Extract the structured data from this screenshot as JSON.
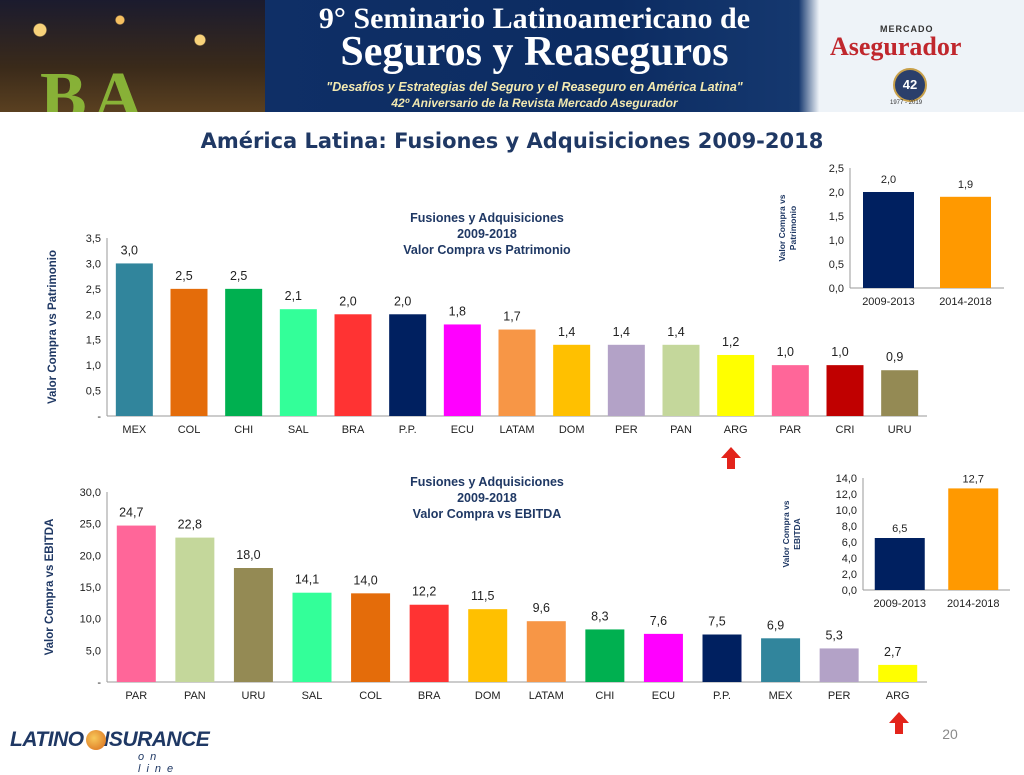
{
  "banner": {
    "title_line1": "9° Seminario Latinoamericano de",
    "title_line2": "Seguros y Reaseguros",
    "subtitle1": "\"Desafíos y Estrategias del Seguro y el Reaseguro en América Latina\"",
    "subtitle2": "42º Aniversario de la Revista Mercado Asegurador",
    "photo_text": "BA",
    "logo_small": "MERCADO",
    "logo_main": "Asegurador",
    "badge": "42",
    "badge_years": "1977 - 2019"
  },
  "slide": {
    "title": "América Latina: Fusiones y Adquisiciones 2009-2018",
    "page_number": "20",
    "footer_logo": {
      "main": "LATINO INSURANCE",
      "sub": "on line"
    }
  },
  "colors": {
    "title": "#1f3864",
    "arrow": "#e3241b"
  },
  "chart_data": [
    {
      "id": "patrimonio",
      "type": "bar",
      "title_lines": [
        "Fusiones y Adquisiciones",
        "2009-2018",
        "Valor Compra vs Patrimonio"
      ],
      "ylabel": "Valor Compra vs Patrimonio",
      "categories": [
        "MEX",
        "COL",
        "CHI",
        "SAL",
        "BRA",
        "P.P.",
        "ECU",
        "LATAM",
        "DOM",
        "PER",
        "PAN",
        "ARG",
        "PAR",
        "CRI",
        "URU"
      ],
      "values": [
        3.0,
        2.5,
        2.5,
        2.1,
        2.0,
        2.0,
        1.8,
        1.7,
        1.4,
        1.4,
        1.4,
        1.2,
        1.0,
        1.0,
        0.9
      ],
      "labels": [
        "3,0",
        "2,5",
        "2,5",
        "2,1",
        "2,0",
        "2,0",
        "1,8",
        "1,7",
        "1,4",
        "1,4",
        "1,4",
        "1,2",
        "1,0",
        "1,0",
        "0,9"
      ],
      "colors": [
        "#31859c",
        "#e46c0a",
        "#00b050",
        "#33ff99",
        "#ff3333",
        "#002060",
        "#ff00ff",
        "#f79646",
        "#ffc000",
        "#b3a2c7",
        "#c4d79b",
        "#ffff00",
        "#ff6699",
        "#c00000",
        "#948a54"
      ],
      "ylim": [
        0,
        3.5
      ],
      "yticks": [
        "-",
        "0,5",
        "1,0",
        "1,5",
        "2,0",
        "2,5",
        "3,0",
        "3,5"
      ],
      "highlight": "ARG"
    },
    {
      "id": "patrimonio_periods",
      "type": "bar",
      "ylabel": "Valor Compra vs Patrimonio",
      "categories": [
        "2009-2013",
        "2014-2018"
      ],
      "values": [
        2.0,
        1.9
      ],
      "labels": [
        "2,0",
        "1,9"
      ],
      "colors": [
        "#002060",
        "#ff9900"
      ],
      "ylim": [
        0,
        2.5
      ],
      "yticks": [
        "0,0",
        "0,5",
        "1,0",
        "1,5",
        "2,0",
        "2,5"
      ]
    },
    {
      "id": "ebitda",
      "type": "bar",
      "title_lines": [
        "Fusiones y Adquisiciones",
        "2009-2018",
        "Valor Compra vs EBITDA"
      ],
      "ylabel": "Valor Compra vs EBITDA",
      "categories": [
        "PAR",
        "PAN",
        "URU",
        "SAL",
        "COL",
        "BRA",
        "DOM",
        "LATAM",
        "CHI",
        "ECU",
        "P.P.",
        "MEX",
        "PER",
        "ARG"
      ],
      "values": [
        24.7,
        22.8,
        18.0,
        14.1,
        14.0,
        12.2,
        11.5,
        9.6,
        8.3,
        7.6,
        7.5,
        6.9,
        5.3,
        2.7
      ],
      "labels": [
        "24,7",
        "22,8",
        "18,0",
        "14,1",
        "14,0",
        "12,2",
        "11,5",
        "9,6",
        "8,3",
        "7,6",
        "7,5",
        "6,9",
        "5,3",
        "2,7"
      ],
      "colors": [
        "#ff6699",
        "#c4d79b",
        "#948a54",
        "#33ff99",
        "#e46c0a",
        "#ff3333",
        "#ffc000",
        "#f79646",
        "#00b050",
        "#ff00ff",
        "#002060",
        "#31859c",
        "#b3a2c7",
        "#ffff00"
      ],
      "ylim": [
        0,
        30
      ],
      "yticks": [
        "-",
        "5,0",
        "10,0",
        "15,0",
        "20,0",
        "25,0",
        "30,0"
      ],
      "highlight": "ARG"
    },
    {
      "id": "ebitda_periods",
      "type": "bar",
      "ylabel": "Valor Compra vs EBITDA",
      "categories": [
        "2009-2013",
        "2014-2018"
      ],
      "values": [
        6.5,
        12.7
      ],
      "labels": [
        "6,5",
        "12,7"
      ],
      "colors": [
        "#002060",
        "#ff9900"
      ],
      "ylim": [
        0,
        14
      ],
      "yticks": [
        "0,0",
        "2,0",
        "4,0",
        "6,0",
        "8,0",
        "10,0",
        "12,0",
        "14,0"
      ]
    }
  ]
}
